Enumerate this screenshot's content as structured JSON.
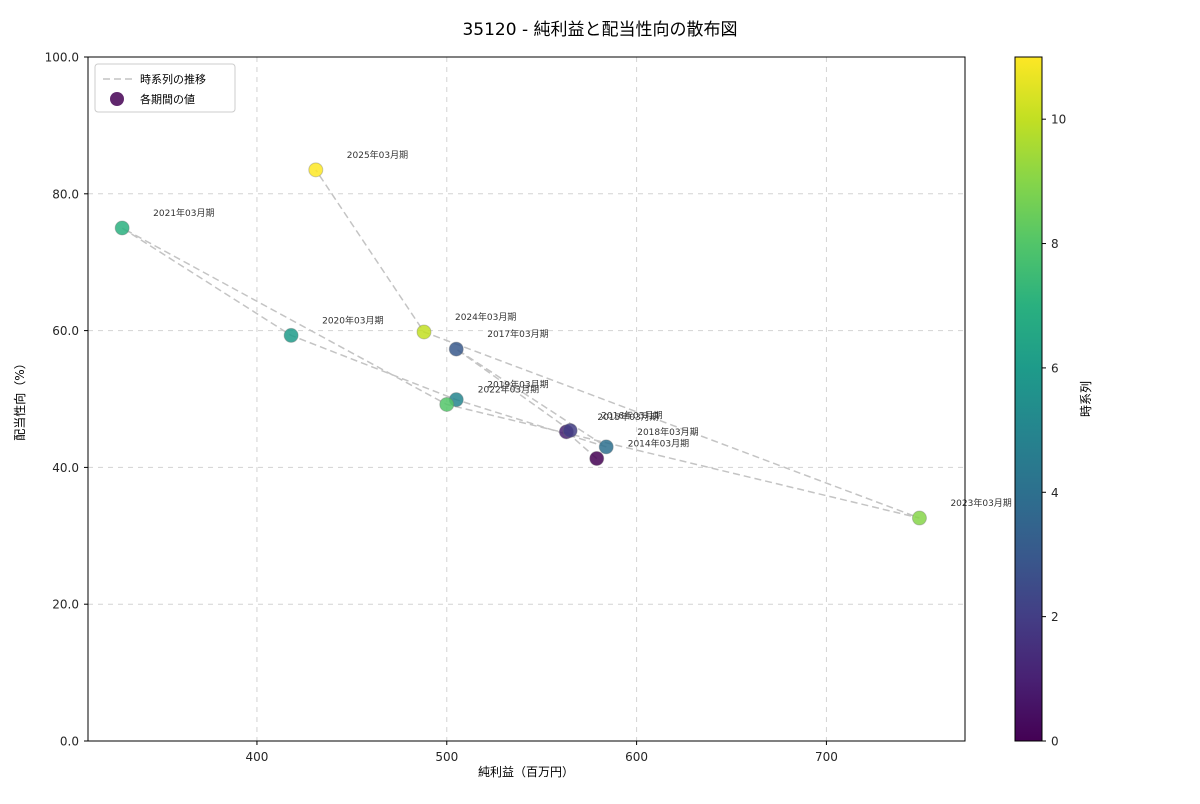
{
  "chart_data": {
    "type": "scatter",
    "title": "35120 - 純利益と配当性向の散布図",
    "xlabel": "純利益（百万円）",
    "ylabel": "配当性向（%）",
    "xlim": [
      311,
      773
    ],
    "ylim": [
      0,
      100
    ],
    "xticks": [
      400,
      500,
      600,
      700
    ],
    "xtick_labels": [
      "400",
      "500",
      "600",
      "700"
    ],
    "yticks": [
      0,
      20,
      40,
      60,
      80,
      100
    ],
    "ytick_labels": [
      "0.0",
      "20.0",
      "40.0",
      "60.0",
      "80.0",
      "100.0"
    ],
    "grid": true,
    "grid_color": "#d3d3d3",
    "legend_position": "upper left",
    "line": {
      "label": "時系列の推移",
      "color": "#c4c4c4",
      "style": "dashed"
    },
    "points_label": "各期間の値",
    "colorbar": {
      "label": "時系列",
      "min": 0,
      "max": 11,
      "ticks": [
        0,
        2,
        4,
        6,
        8,
        10
      ],
      "colormap": "viridis",
      "colors": [
        "#440154",
        "#482173",
        "#433e85",
        "#38598c",
        "#2d708e",
        "#25858e",
        "#1e9b8a",
        "#2ab07f",
        "#52c569",
        "#86d549",
        "#c2df23",
        "#fde725"
      ]
    },
    "points": [
      {
        "label": "2014年03月期",
        "x": 579,
        "y": 41.3,
        "t": 0,
        "color": "#440154"
      },
      {
        "label": "2015年03月期",
        "x": 563,
        "y": 45.2,
        "t": 1,
        "color": "#482173"
      },
      {
        "label": "2016年03月期",
        "x": 565,
        "y": 45.4,
        "t": 2,
        "color": "#433e85"
      },
      {
        "label": "2017年03月期",
        "x": 505,
        "y": 57.3,
        "t": 3,
        "color": "#38598c"
      },
      {
        "label": "2018年03月期",
        "x": 584,
        "y": 43.0,
        "t": 4,
        "color": "#2d708e"
      },
      {
        "label": "2019年03月期",
        "x": 505,
        "y": 49.9,
        "t": 5,
        "color": "#25858e"
      },
      {
        "label": "2020年03月期",
        "x": 418,
        "y": 59.3,
        "t": 6,
        "color": "#1e9b8a"
      },
      {
        "label": "2021年03月期",
        "x": 329,
        "y": 75.0,
        "t": 7,
        "color": "#2ab07f"
      },
      {
        "label": "2022年03月期",
        "x": 500,
        "y": 49.2,
        "t": 8,
        "color": "#52c569"
      },
      {
        "label": "2023年03月期",
        "x": 749,
        "y": 32.6,
        "t": 9,
        "color": "#86d549"
      },
      {
        "label": "2024年03月期",
        "x": 488,
        "y": 59.8,
        "t": 10,
        "color": "#c2df23"
      },
      {
        "label": "2025年03月期",
        "x": 431,
        "y": 83.5,
        "t": 11,
        "color": "#fde725"
      }
    ]
  }
}
